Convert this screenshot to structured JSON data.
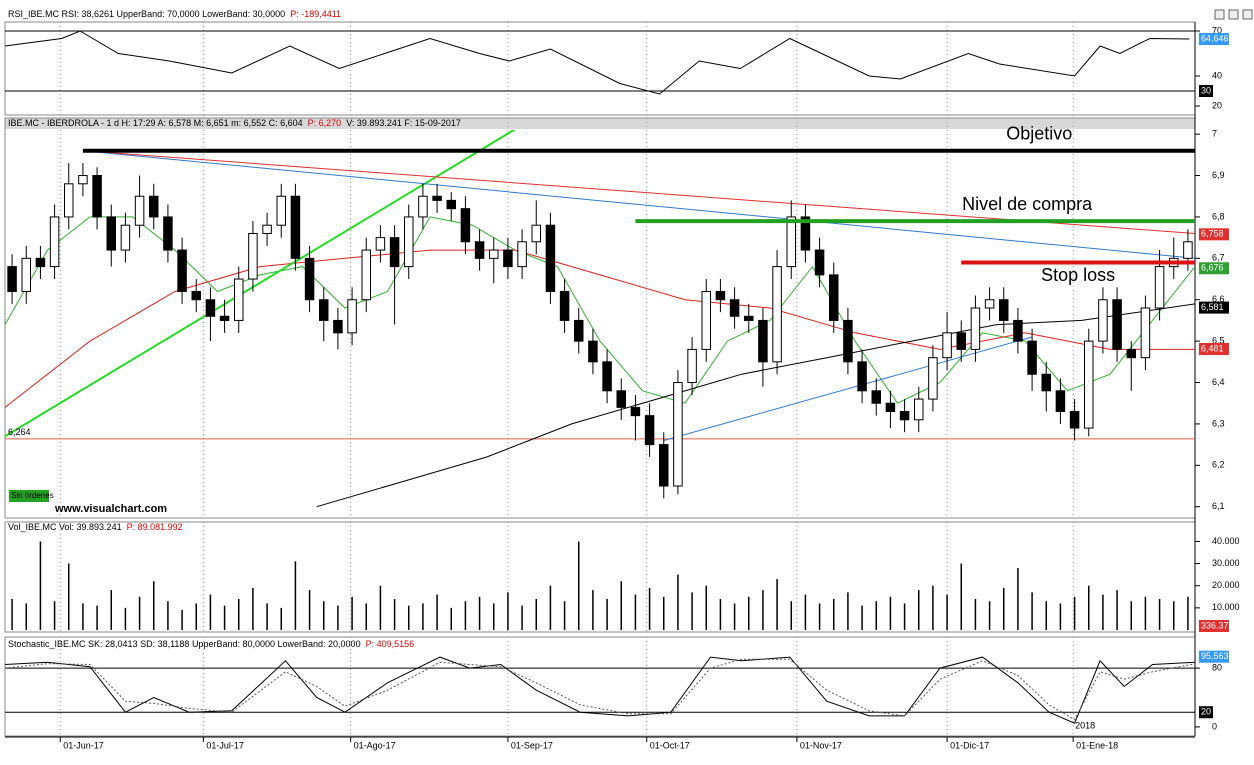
{
  "chart_data": {
    "type": "candlestick",
    "xlim": [
      0,
      84
    ],
    "xticks": [
      {
        "value": 3.9,
        "label": "01-Jun-17"
      },
      {
        "value": 14,
        "label": "01-Jul-17"
      },
      {
        "value": 24.4,
        "label": "01-Ago-17"
      },
      {
        "value": 35.5,
        "label": "01-Sep-17"
      },
      {
        "value": 45.3,
        "label": "01-Oct-17"
      },
      {
        "value": 55.9,
        "label": "01-Nov-17"
      },
      {
        "value": 66.5,
        "label": "01-Dic-17"
      },
      {
        "value": 75.4,
        "label": "01-Ene-18"
      }
    ],
    "year_marker": {
      "value": 75.4,
      "label": "2018"
    },
    "grid": true,
    "rsi": {
      "header": {
        "label": "RSI_IBE.MC  RSI: 38,6261  UpperBand: 70,0000  LowerBand: 30,0000",
        "p": "P: -189,4411"
      },
      "ylim": [
        15,
        72
      ],
      "yticks": [
        20,
        40,
        70
      ],
      "bands": [
        {
          "value": 70
        },
        {
          "value": 30,
          "label": "30"
        }
      ],
      "color": "#000000",
      "x": [
        0,
        4,
        5.3,
        8,
        11.6,
        16,
        20.1,
        23.6,
        30,
        33.5,
        35.6,
        38.5,
        43.4,
        46.2,
        49,
        51.9,
        55.4,
        61,
        63.2,
        68,
        70.2,
        75.5,
        77.3,
        78.7,
        80.8,
        83.6
      ],
      "values": [
        60,
        65,
        70,
        55,
        50,
        42,
        60,
        45,
        65,
        55,
        50,
        58,
        35,
        28,
        50,
        45,
        65,
        40,
        38,
        55,
        48,
        40,
        60,
        55,
        65,
        64.646
      ],
      "tag": {
        "value": 64.646,
        "label": "64,646",
        "color": "#3399ff"
      }
    },
    "price": {
      "header": {
        "label": "IBE.MC - IBERDROLA - 1 d  H: 17:29  A: 6,578  M: 6,651  m: 6,552  C: 6,604",
        "p": "P: 6,270",
        "tail": "V: 39.893.241  F: 15-09-2017"
      },
      "ylim": [
        6.08,
        7.01
      ],
      "yticks": [
        {
          "value": 6.1,
          "label": "6,1"
        },
        {
          "value": 6.2,
          "label": "6,2"
        },
        {
          "value": 6.3,
          "label": "6,3"
        },
        {
          "value": 6.4,
          "label": "6,4"
        },
        {
          "value": 6.5,
          "label": "6,5"
        },
        {
          "value": 6.6,
          "label": "6,6"
        },
        {
          "value": 6.7,
          "label": "6,7"
        },
        {
          "value": 6.8,
          "label": "6,8"
        },
        {
          "value": 6.9,
          "label": "6,9"
        },
        7
      ],
      "opens": [
        6.68,
        6.62,
        6.7,
        6.68,
        6.8,
        6.88,
        6.9,
        6.8,
        6.72,
        6.78,
        6.85,
        6.8,
        6.72,
        6.62,
        6.6,
        6.56,
        6.55,
        6.65,
        6.76,
        6.78,
        6.85,
        6.7,
        6.6,
        6.55,
        6.52,
        6.6,
        6.72,
        6.75,
        6.68,
        6.8,
        6.85,
        6.84,
        6.82,
        6.74,
        6.7,
        6.72,
        6.68,
        6.74,
        6.78,
        6.62,
        6.55,
        6.5,
        6.45,
        6.38,
        6.34,
        6.32,
        6.25,
        6.15,
        6.4,
        6.48,
        6.62,
        6.6,
        6.56,
        6.55,
        6.45,
        6.68,
        6.8,
        6.72,
        6.66,
        6.55,
        6.45,
        6.38,
        6.35,
        6.33,
        6.31,
        6.36,
        6.46,
        6.52,
        6.48,
        6.58,
        6.6,
        6.55,
        6.5,
        6.42,
        6.38,
        6.33,
        6.29,
        6.5,
        6.6,
        6.48,
        6.46,
        6.58,
        6.68,
        6.7
      ],
      "highs": [
        6.71,
        6.73,
        6.73,
        6.83,
        6.93,
        6.93,
        6.92,
        6.83,
        6.81,
        6.9,
        6.88,
        6.83,
        6.75,
        6.65,
        6.63,
        6.6,
        6.68,
        6.79,
        6.81,
        6.88,
        6.88,
        6.73,
        6.63,
        6.58,
        6.63,
        6.75,
        6.78,
        6.78,
        6.83,
        6.88,
        6.88,
        6.86,
        6.85,
        6.77,
        6.75,
        6.75,
        6.77,
        6.84,
        6.81,
        6.65,
        6.58,
        6.53,
        6.48,
        6.41,
        6.37,
        6.35,
        6.28,
        6.43,
        6.51,
        6.65,
        6.65,
        6.63,
        6.59,
        6.58,
        6.72,
        6.84,
        6.83,
        6.75,
        6.69,
        6.58,
        6.48,
        6.41,
        6.38,
        6.36,
        6.39,
        6.49,
        6.57,
        6.55,
        6.61,
        6.63,
        6.63,
        6.58,
        6.53,
        6.45,
        6.41,
        6.36,
        6.53,
        6.63,
        6.63,
        6.5,
        6.61,
        6.72,
        6.75,
        6.77
      ],
      "lows": [
        6.59,
        6.59,
        6.65,
        6.65,
        6.77,
        6.85,
        6.77,
        6.68,
        6.69,
        6.75,
        6.77,
        6.69,
        6.59,
        6.57,
        6.5,
        6.52,
        6.52,
        6.62,
        6.73,
        6.75,
        6.67,
        6.57,
        6.5,
        6.48,
        6.49,
        6.57,
        6.69,
        6.54,
        6.65,
        6.77,
        6.81,
        6.79,
        6.71,
        6.67,
        6.64,
        6.65,
        6.65,
        6.71,
        6.59,
        6.52,
        6.47,
        6.42,
        6.35,
        6.31,
        6.26,
        6.22,
        6.12,
        6.13,
        6.37,
        6.45,
        6.57,
        6.53,
        6.52,
        6.39,
        6.42,
        6.65,
        6.69,
        6.63,
        6.52,
        6.42,
        6.35,
        6.32,
        6.29,
        6.28,
        6.28,
        6.33,
        6.43,
        6.45,
        6.45,
        6.55,
        6.52,
        6.47,
        6.38,
        6.33,
        6.3,
        6.26,
        6.27,
        6.47,
        6.45,
        6.38,
        6.43,
        6.55,
        6.65,
        6.67
      ],
      "closes": [
        6.62,
        6.7,
        6.68,
        6.8,
        6.88,
        6.9,
        6.8,
        6.72,
        6.78,
        6.85,
        6.8,
        6.72,
        6.62,
        6.6,
        6.56,
        6.55,
        6.65,
        6.76,
        6.78,
        6.85,
        6.7,
        6.6,
        6.55,
        6.52,
        6.6,
        6.72,
        6.75,
        6.68,
        6.8,
        6.85,
        6.84,
        6.82,
        6.74,
        6.7,
        6.72,
        6.68,
        6.74,
        6.78,
        6.62,
        6.55,
        6.5,
        6.45,
        6.38,
        6.34,
        6.32,
        6.25,
        6.15,
        6.4,
        6.48,
        6.62,
        6.6,
        6.56,
        6.55,
        6.45,
        6.68,
        6.8,
        6.72,
        6.66,
        6.55,
        6.45,
        6.38,
        6.35,
        6.33,
        6.31,
        6.36,
        6.46,
        6.52,
        6.48,
        6.58,
        6.6,
        6.55,
        6.5,
        6.42,
        6.38,
        6.33,
        6.29,
        6.5,
        6.6,
        6.48,
        6.46,
        6.58,
        6.68,
        6.7,
        6.74
      ],
      "up_color": "#ffffff",
      "down_color": "#000000",
      "averages": [
        {
          "color": "#30b030",
          "x": [
            0,
            3,
            6,
            9,
            12,
            15,
            18,
            21,
            24,
            27,
            30,
            33,
            36,
            39,
            42,
            45,
            48,
            51,
            54,
            57,
            60,
            63,
            66,
            69,
            72,
            75,
            78,
            81,
            84
          ],
          "values": [
            6.54,
            6.72,
            6.8,
            6.8,
            6.72,
            6.62,
            6.66,
            6.68,
            6.58,
            6.62,
            6.8,
            6.78,
            6.72,
            6.68,
            6.5,
            6.38,
            6.35,
            6.5,
            6.55,
            6.68,
            6.5,
            6.35,
            6.4,
            6.52,
            6.5,
            6.38,
            6.42,
            6.55,
            6.68
          ]
        },
        {
          "color": "#dd2020",
          "x": [
            0,
            6,
            12,
            18,
            24,
            30,
            36,
            42,
            48,
            54,
            60,
            66,
            72,
            78,
            84
          ],
          "values": [
            6.34,
            6.5,
            6.62,
            6.68,
            6.7,
            6.72,
            6.72,
            6.66,
            6.6,
            6.58,
            6.52,
            6.48,
            6.52,
            6.48,
            6.48
          ]
        },
        {
          "color": "#000000",
          "x": [
            22,
            28,
            34,
            40,
            46,
            52,
            58,
            64,
            70,
            76,
            84
          ],
          "values": [
            6.1,
            6.16,
            6.22,
            6.3,
            6.36,
            6.42,
            6.46,
            6.5,
            6.54,
            6.55,
            6.59
          ]
        }
      ],
      "trendlines": [
        {
          "color": "#22dd22",
          "x": [
            0,
            36.4
          ],
          "values": [
            6.27,
            7.02
          ]
        },
        {
          "color": "#3377cc",
          "x": [
            5.5,
            84
          ],
          "values": [
            6.96,
            6.7
          ]
        },
        {
          "color": "#e03030",
          "x": [
            5.5,
            84
          ],
          "values": [
            6.96,
            6.76
          ]
        },
        {
          "color": "#3377cc",
          "x": [
            46.5,
            72.5
          ],
          "values": [
            6.26,
            6.51
          ]
        }
      ],
      "levels": [
        {
          "label": "Objetivo",
          "value": 6.96,
          "x": [
            5.5,
            84
          ],
          "color": "#000000"
        },
        {
          "label": "Nivel de compra",
          "value": 6.79,
          "x": [
            44.5,
            84
          ],
          "color": "#22a022"
        },
        {
          "label": "Stop loss",
          "value": 6.69,
          "x": [
            67.5,
            84
          ],
          "color": "#dd1010"
        }
      ],
      "support": {
        "value": 6.264,
        "label": "6,264",
        "color": "#e06040"
      },
      "tags": [
        {
          "value": 6.758,
          "label": "6,758",
          "color": "#e03030"
        },
        {
          "value": 6.676,
          "label": "6,676",
          "color": "#30a030"
        },
        {
          "value": 6.581,
          "label": "6,581",
          "color": "#000000"
        },
        {
          "value": 6.481,
          "label": "6,481",
          "color": "#e03030"
        }
      ],
      "status": "Sin órdenes",
      "watermark": "www.visualchart.com"
    },
    "volume": {
      "header": {
        "label": "Vol_IBE.MC  Vol: 39.893.241",
        "p": "P: 89.081.992"
      },
      "ylim": [
        0,
        42000
      ],
      "yticks": [
        {
          "value": 10000,
          "label": "10.000"
        },
        {
          "value": 20000,
          "label": "20.000"
        },
        {
          "value": 30000,
          "label": "30.000"
        },
        {
          "value": 40000,
          "label": "40.000"
        }
      ],
      "color": "#000000",
      "values": [
        14000,
        12000,
        40000,
        13000,
        30000,
        12000,
        11000,
        18000,
        10000,
        15000,
        22000,
        13000,
        9000,
        12000,
        16000,
        11000,
        14000,
        19000,
        12000,
        10000,
        31000,
        18000,
        13000,
        11000,
        15000,
        12000,
        20000,
        14000,
        11000,
        12000,
        16000,
        10000,
        13000,
        15000,
        12000,
        17000,
        11000,
        14000,
        20000,
        13000,
        40000,
        18000,
        14000,
        22000,
        16000,
        19000,
        15000,
        25000,
        17000,
        20000,
        14000,
        12000,
        15000,
        18000,
        23000,
        13000,
        16000,
        12000,
        14000,
        17000,
        11000,
        13000,
        15000,
        12000,
        18000,
        20000,
        16000,
        30000,
        14000,
        13000,
        19000,
        28000,
        17000,
        13000,
        12000,
        15000,
        20000,
        16000,
        18000,
        13000,
        15000,
        14000,
        13000,
        15000
      ],
      "tag": {
        "label": "336.37",
        "color": "#e03030"
      }
    },
    "stochastic": {
      "header": {
        "label": "Stochastic_IBE.MC  SK: 28,0413  SD: 38,1188  UpperBand: 80,0000  LowerBand: 20,0000",
        "p": "P: 409,5156"
      },
      "ylim": [
        -11,
        121
      ],
      "yticks": [
        0,
        80
      ],
      "bands": [
        {
          "value": 80
        },
        {
          "value": 20,
          "label": "20"
        }
      ],
      "x": [
        0,
        3,
        6,
        8.5,
        10.5,
        13,
        16,
        19.8,
        22,
        24,
        27,
        30.7,
        32.8,
        35,
        37.5,
        40.6,
        44,
        47,
        49.8,
        52,
        55.4,
        58,
        61,
        63.5,
        66,
        69,
        71.5,
        73.7,
        75.5,
        77.3,
        79,
        81,
        84
      ],
      "series": [
        {
          "color": "#000000",
          "values": [
            85,
            88,
            82,
            20,
            40,
            20,
            22,
            90,
            40,
            20,
            60,
            95,
            80,
            85,
            50,
            20,
            15,
            20,
            95,
            90,
            95,
            35,
            15,
            15,
            80,
            95,
            60,
            20,
            5,
            90,
            55,
            85,
            88
          ]
        },
        {
          "color": "#555555",
          "dashed": true,
          "values": [
            80,
            86,
            85,
            35,
            32,
            25,
            20,
            75,
            55,
            28,
            50,
            88,
            85,
            82,
            60,
            30,
            18,
            18,
            80,
            92,
            92,
            50,
            22,
            15,
            65,
            90,
            70,
            30,
            10,
            75,
            65,
            75,
            86
          ]
        }
      ],
      "tag": {
        "value": 95.563,
        "label": "95,563",
        "color": "#3399ff"
      }
    }
  }
}
